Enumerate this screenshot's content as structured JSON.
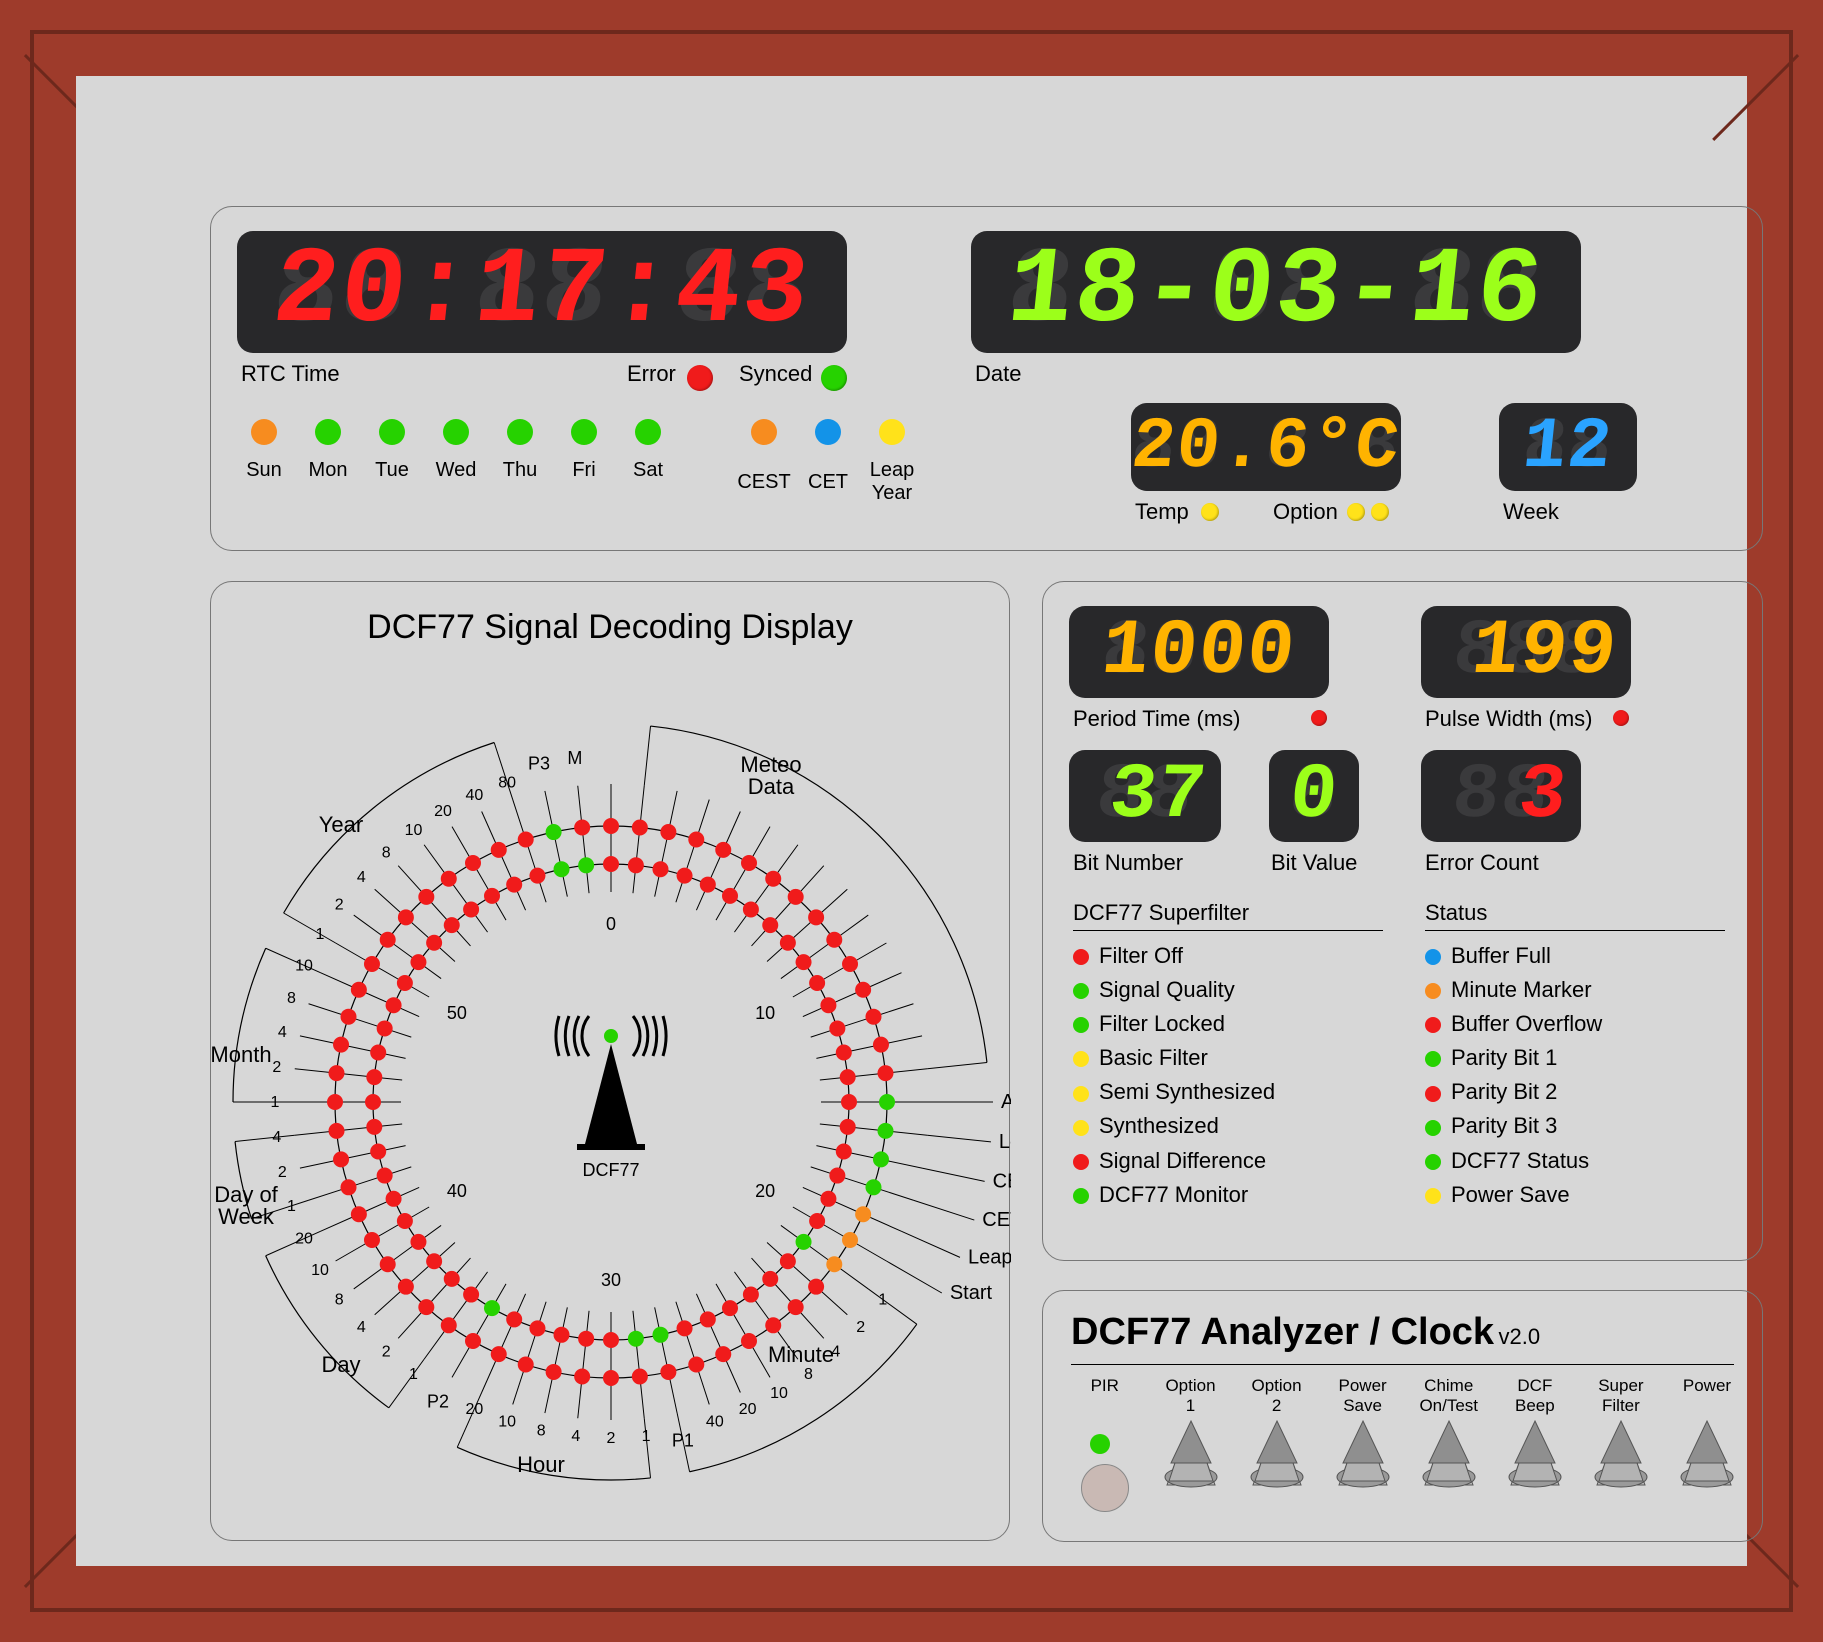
{
  "colors": {
    "frame": "#9e3b2b",
    "frame_edge": "#6d281c",
    "panel": "#d7d7d7",
    "lcd_bg": "#28282a",
    "led": {
      "red": "#f01b1b",
      "green": "#26d200",
      "orange": "#f78c1f",
      "blue": "#1393e8",
      "yellow": "#ffe21a"
    },
    "seg": {
      "red": "#ff1e1e",
      "green": "#9cff1a",
      "orange": "#ffb300",
      "blue": "#2aa3ff",
      "ghost": "#343436"
    }
  },
  "top": {
    "rtc_time": "20:17:43",
    "rtc_label": "RTC Time",
    "error_label": "Error",
    "synced_label": "Synced",
    "error_color": "red",
    "synced_color": "green",
    "date": "18-03-16",
    "date_label": "Date",
    "temp_value": "20.6°C",
    "temp_label": "Temp",
    "option_label": "Option",
    "week_value": "12",
    "week_label": "Week",
    "days": [
      "Sun",
      "Mon",
      "Tue",
      "Wed",
      "Thu",
      "Fri",
      "Sat"
    ],
    "day_led_colors": [
      "orange",
      "green",
      "green",
      "green",
      "green",
      "green",
      "green"
    ],
    "extra_leds": [
      {
        "label": "CEST",
        "color": "orange"
      },
      {
        "label": "CET",
        "color": "blue"
      },
      {
        "label": "Leap\nYear",
        "color": "yellow"
      }
    ],
    "temp_option_leds": [
      "yellow",
      "yellow",
      "yellow"
    ]
  },
  "dial": {
    "title": "DCF77 Signal Decoding Display",
    "antenna_label": "DCF77",
    "section_labels": [
      "Meteo\nData",
      "Antenna",
      "Leap Hr",
      "CEST",
      "CET",
      "Leap Sec",
      "Start",
      "Minute",
      "Hour",
      "Day",
      "Day of\nWeek",
      "Month",
      "Year"
    ],
    "inner_numbers": [
      "0",
      "10",
      "20",
      "30",
      "40",
      "50"
    ],
    "green_outer_bits": [
      15,
      16,
      17,
      18,
      19,
      58
    ],
    "green_inner_bits": [
      21,
      28,
      29,
      35,
      58,
      59
    ],
    "orange_outer_bits": [
      19,
      20,
      21
    ],
    "minute_ticks": {
      "P_labels": {
        "P1": 28,
        "P2": 35,
        "P3": 58,
        "M": 59
      },
      "group_numbering": {
        "Minute": [
          1,
          2,
          4,
          8,
          10,
          20,
          40
        ],
        "Hour": [
          1,
          2,
          4,
          8,
          10,
          20
        ],
        "Day": [
          1,
          2,
          4,
          8,
          10,
          20
        ],
        "Day of Week": [
          1,
          2,
          4
        ],
        "Month": [
          1,
          2,
          4,
          8,
          10
        ],
        "Year": [
          1,
          2,
          4,
          8,
          10,
          20,
          40,
          80
        ]
      }
    }
  },
  "stats": {
    "period_time": {
      "label": "Period Time (ms)",
      "value": "1000",
      "led": "red"
    },
    "pulse_width": {
      "label": "Pulse Width (ms)",
      "value": "199",
      "led": "red"
    },
    "bit_number": {
      "label": "Bit Number",
      "value": "37"
    },
    "bit_value": {
      "label": "Bit Value",
      "value": "0"
    },
    "error_count": {
      "label": "Error Count",
      "value": "3",
      "color": "red",
      "ghost": "88"
    },
    "superfilter_title": "DCF77 Superfilter",
    "status_title": "Status",
    "superfilter": [
      {
        "c": "red",
        "t": "Filter Off"
      },
      {
        "c": "green",
        "t": "Signal Quality"
      },
      {
        "c": "green",
        "t": "Filter Locked"
      },
      {
        "c": "yellow",
        "t": "Basic Filter"
      },
      {
        "c": "yellow",
        "t": "Semi Synthesized"
      },
      {
        "c": "yellow",
        "t": "Synthesized"
      },
      {
        "c": "red",
        "t": "Signal Difference"
      },
      {
        "c": "green",
        "t": "DCF77 Monitor"
      }
    ],
    "status": [
      {
        "c": "blue",
        "t": "Buffer Full"
      },
      {
        "c": "orange",
        "t": "Minute Marker"
      },
      {
        "c": "red",
        "t": "Buffer Overflow"
      },
      {
        "c": "green",
        "t": "Parity Bit 1"
      },
      {
        "c": "red",
        "t": "Parity Bit 2"
      },
      {
        "c": "green",
        "t": "Parity Bit 3"
      },
      {
        "c": "green",
        "t": "DCF77 Status"
      },
      {
        "c": "yellow",
        "t": "Power Save"
      }
    ]
  },
  "controls": {
    "title": "DCF77 Analyzer / Clock",
    "version": "v2.0",
    "switches": [
      {
        "label": "PIR",
        "type": "led",
        "color": "green"
      },
      {
        "label": "Option\n1",
        "type": "toggle"
      },
      {
        "label": "Option\n2",
        "type": "toggle"
      },
      {
        "label": "Power\nSave",
        "type": "toggle"
      },
      {
        "label": "Chime\nOn/Test",
        "type": "toggle"
      },
      {
        "label": "DCF\nBeep",
        "type": "toggle"
      },
      {
        "label": "Super\nFilter",
        "type": "toggle"
      },
      {
        "label": "Power",
        "type": "toggle"
      }
    ]
  }
}
